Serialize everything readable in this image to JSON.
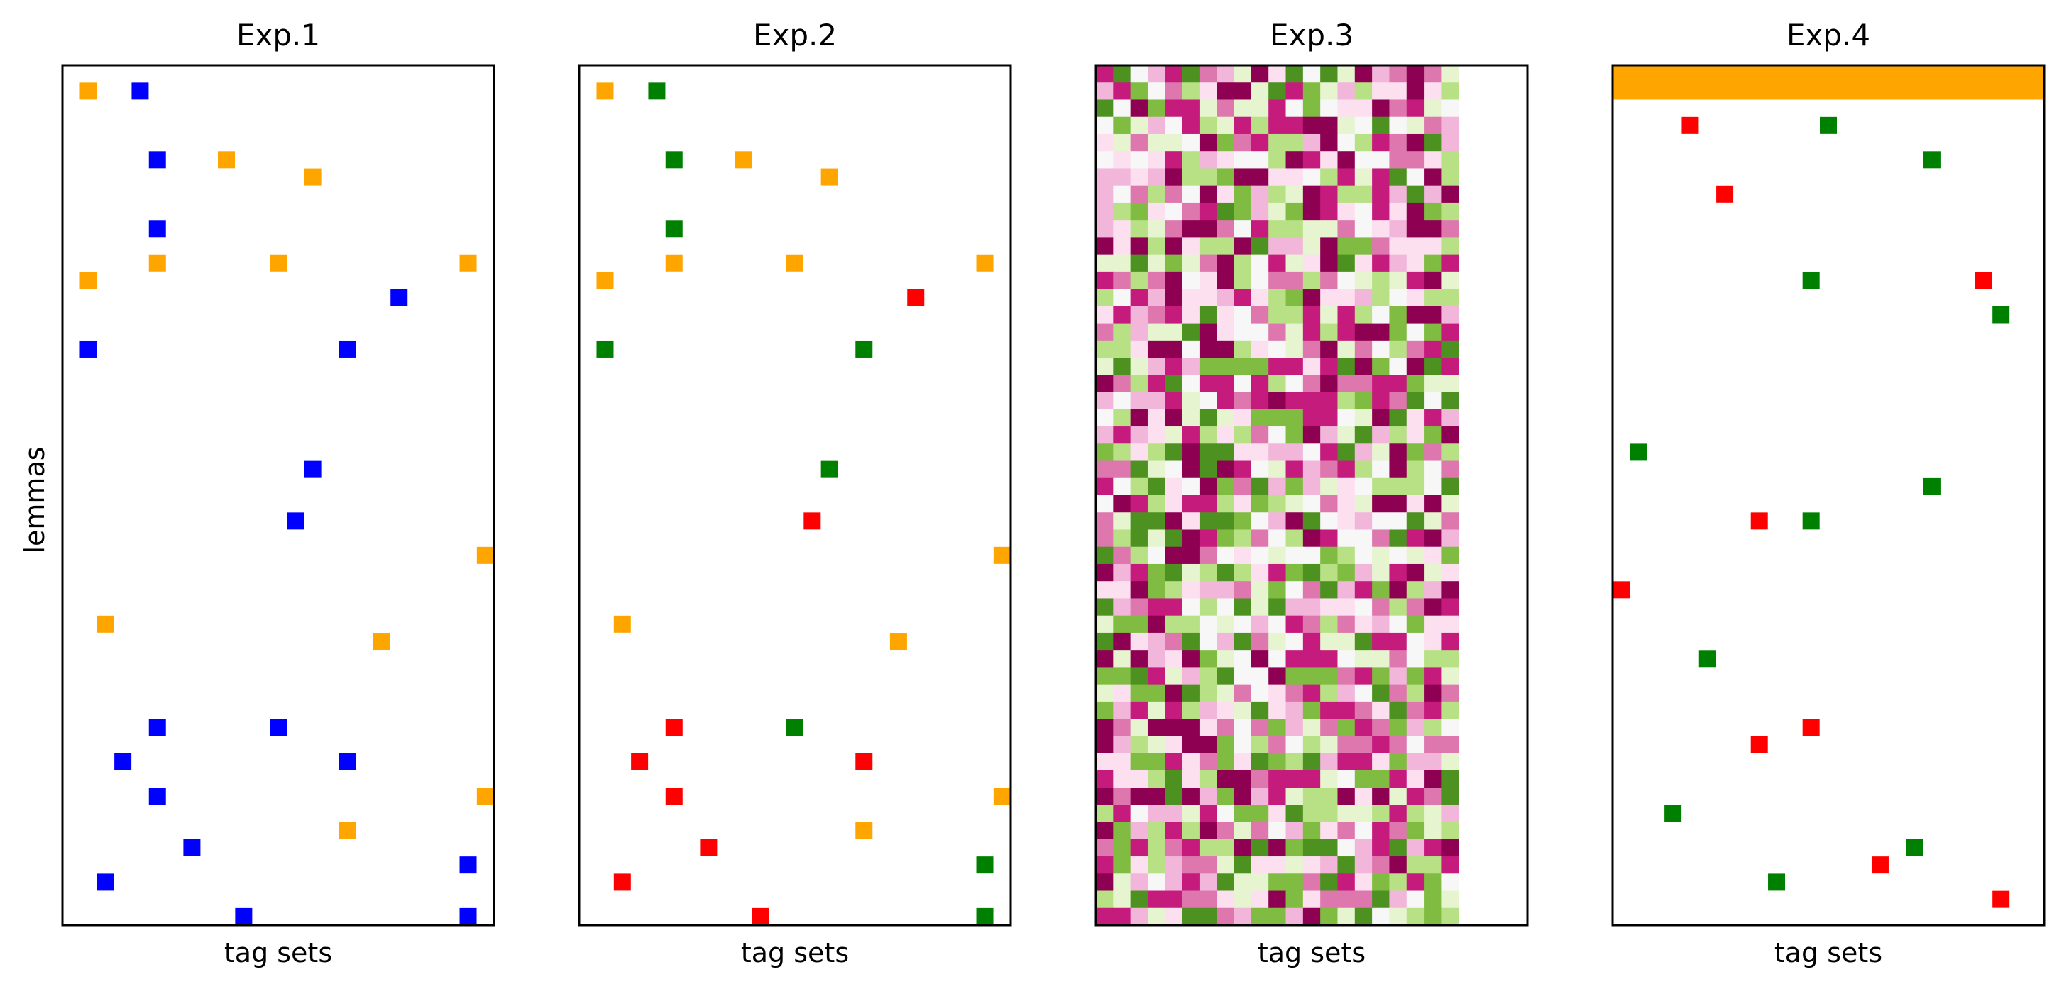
{
  "figure": {
    "ylabel": "lemmas"
  },
  "colors": {
    "orange": "#ffa500",
    "blue": "#0000ff",
    "green": "#008000",
    "red": "#ff0000",
    "piyg": [
      "#8e0152",
      "#c51b7d",
      "#de77ae",
      "#f1b6da",
      "#fde0ef",
      "#f7f7f7",
      "#e6f5d0",
      "#b8e186",
      "#7fbc41",
      "#4d9221",
      "#276419"
    ]
  },
  "chart_data": [
    {
      "type": "scatter",
      "title": "Exp.1",
      "xlabel": "tag sets",
      "ylabel": "lemmas",
      "grid": false,
      "xlim": [
        0,
        25
      ],
      "ylim": [
        0,
        50
      ],
      "cells": [
        {
          "x": 1,
          "y": 1,
          "color": "orange"
        },
        {
          "x": 4,
          "y": 1,
          "color": "blue"
        },
        {
          "x": 5,
          "y": 5,
          "color": "blue"
        },
        {
          "x": 9,
          "y": 5,
          "color": "orange"
        },
        {
          "x": 14,
          "y": 6,
          "color": "orange"
        },
        {
          "x": 5,
          "y": 9,
          "color": "blue"
        },
        {
          "x": 5,
          "y": 11,
          "color": "orange"
        },
        {
          "x": 12,
          "y": 11,
          "color": "orange"
        },
        {
          "x": 23,
          "y": 11,
          "color": "orange"
        },
        {
          "x": 1,
          "y": 12,
          "color": "orange"
        },
        {
          "x": 19,
          "y": 13,
          "color": "blue"
        },
        {
          "x": 1,
          "y": 16,
          "color": "blue"
        },
        {
          "x": 16,
          "y": 16,
          "color": "blue"
        },
        {
          "x": 14,
          "y": 23,
          "color": "blue"
        },
        {
          "x": 13,
          "y": 26,
          "color": "blue"
        },
        {
          "x": 24,
          "y": 28,
          "color": "orange"
        },
        {
          "x": 2,
          "y": 32,
          "color": "orange"
        },
        {
          "x": 18,
          "y": 33,
          "color": "orange"
        },
        {
          "x": 5,
          "y": 38,
          "color": "blue"
        },
        {
          "x": 12,
          "y": 38,
          "color": "blue"
        },
        {
          "x": 3,
          "y": 40,
          "color": "blue"
        },
        {
          "x": 16,
          "y": 40,
          "color": "blue"
        },
        {
          "x": 5,
          "y": 42,
          "color": "blue"
        },
        {
          "x": 24,
          "y": 42,
          "color": "orange"
        },
        {
          "x": 16,
          "y": 44,
          "color": "orange"
        },
        {
          "x": 7,
          "y": 45,
          "color": "blue"
        },
        {
          "x": 23,
          "y": 46,
          "color": "blue"
        },
        {
          "x": 2,
          "y": 47,
          "color": "blue"
        },
        {
          "x": 10,
          "y": 49,
          "color": "blue"
        },
        {
          "x": 23,
          "y": 49,
          "color": "blue"
        }
      ]
    },
    {
      "type": "scatter",
      "title": "Exp.2",
      "xlabel": "tag sets",
      "grid": false,
      "xlim": [
        0,
        25
      ],
      "ylim": [
        0,
        50
      ],
      "cells": [
        {
          "x": 1,
          "y": 1,
          "color": "orange"
        },
        {
          "x": 4,
          "y": 1,
          "color": "green"
        },
        {
          "x": 5,
          "y": 5,
          "color": "green"
        },
        {
          "x": 9,
          "y": 5,
          "color": "orange"
        },
        {
          "x": 14,
          "y": 6,
          "color": "orange"
        },
        {
          "x": 5,
          "y": 9,
          "color": "green"
        },
        {
          "x": 5,
          "y": 11,
          "color": "orange"
        },
        {
          "x": 12,
          "y": 11,
          "color": "orange"
        },
        {
          "x": 23,
          "y": 11,
          "color": "orange"
        },
        {
          "x": 1,
          "y": 12,
          "color": "orange"
        },
        {
          "x": 19,
          "y": 13,
          "color": "red"
        },
        {
          "x": 1,
          "y": 16,
          "color": "green"
        },
        {
          "x": 16,
          "y": 16,
          "color": "green"
        },
        {
          "x": 14,
          "y": 23,
          "color": "green"
        },
        {
          "x": 13,
          "y": 26,
          "color": "red"
        },
        {
          "x": 24,
          "y": 28,
          "color": "orange"
        },
        {
          "x": 2,
          "y": 32,
          "color": "orange"
        },
        {
          "x": 18,
          "y": 33,
          "color": "orange"
        },
        {
          "x": 5,
          "y": 38,
          "color": "red"
        },
        {
          "x": 12,
          "y": 38,
          "color": "green"
        },
        {
          "x": 3,
          "y": 40,
          "color": "red"
        },
        {
          "x": 16,
          "y": 40,
          "color": "red"
        },
        {
          "x": 5,
          "y": 42,
          "color": "red"
        },
        {
          "x": 24,
          "y": 42,
          "color": "orange"
        },
        {
          "x": 16,
          "y": 44,
          "color": "orange"
        },
        {
          "x": 7,
          "y": 45,
          "color": "red"
        },
        {
          "x": 23,
          "y": 46,
          "color": "green"
        },
        {
          "x": 2,
          "y": 47,
          "color": "red"
        },
        {
          "x": 10,
          "y": 49,
          "color": "red"
        },
        {
          "x": 23,
          "y": 49,
          "color": "green"
        }
      ]
    },
    {
      "type": "heatmap",
      "title": "Exp.3",
      "xlabel": "tag sets",
      "grid": false,
      "xlim": [
        0,
        25
      ],
      "ylim": [
        0,
        50
      ],
      "colormap": "piyg",
      "rows": [
        "bjfdbjcdgaejfjgadcacg",
        "dbifcheaagjbigdheeaeh",
        "jfaibbgcggbfifeeacbgf",
        "figdfbhgbhbbaagfjfgcd",
        "egcggfaicbhhdafhbcajd",
        "fefebhdeffhabeaffcceh",
        "ddedahhiaaeefhbgbjfah",
        "dfchcfaeidhgabhhbdjda",
        "dhiefcbjidgiabefbeaih",
        "dehgcaacfbhhggcfedaac",
        "aeahaehhajddgaiiceeeh",
        "ggjgigcahfbgeajebdeib",
        "bchcafeahfcchcfghgbag",
        "hfbdaeedbehiaeedhfehh",
        "ebdcbejefchhbgbhfiaad",
        "chdggjaeffcgbhbaaifib",
        "hheaafaahefgcagcfhcbj",
        "gjgdbdiiiibbebjaifajb",
        "achbjfbbfbhfcaccbbigg",
        "dfddbgfbcbabbbhibcjfj",
        "fhaeagjgeiiibbfgajebd",
        "dbdegbhehcfiadgjdheia",
        "ihehjajjeeddfbjdgaich",
        "ccjgfajabfgbdcbhfahfc",
        "bfhjefaicjdidgefhhhfj",
        "fabhebbheihgfcegaaeag",
        "cgjjaejjifdajfedffjgc",
        "chjgjabihcfhabffcjbad",
        "jchfaacfefgffihfgfgei",
        "adbijghjhebijhidgbage",
        "eeaiheddcgifcjdbiahda",
        "jdcbbfhfjgjddeefchcab",
        "giiahhfgfdfbchcedfiee",
        "jaedcjfdjcgfbggjbbfeb",
        "agadeaigfafbbbfggcfhh",
        "iijbgdhjffaiiicbidibg",
        "geiiajhgcfecbhdfjchac",
        "idbgbhdegjedibbcejcbh",
        "acgaaaecfcidgcibcidhf",
        "adhgeaaifhcfhgccbcfcc",
        "eeiibeciejihjdbbeiddg",
        "beehjehaacbbbgfiibeaj",
        "acaajadiadbghhaeagbcj",
        "hbfddgbfiiejhhgghbhgd",
        "aidhbhacgcfdiecfbcigh",
        "cibhcbhhajaijjfdbjdba",
        "biehdccgjeegedjdcahhb",
        "agdfdbdjggiicjbeihbif",
        "hgjbbccegeaiecccjdfig",
        "bbdgejjcdiidaigjfghih"
      ]
    },
    {
      "type": "scatter",
      "title": "Exp.4",
      "xlabel": "tag sets",
      "grid": false,
      "xlim": [
        0,
        25
      ],
      "ylim": [
        0,
        50
      ],
      "rows_band": {
        "from": 0,
        "to": 2,
        "color": "orange"
      },
      "cells": [
        {
          "x": 4,
          "y": 3,
          "color": "red"
        },
        {
          "x": 12,
          "y": 3,
          "color": "green"
        },
        {
          "x": 18,
          "y": 5,
          "color": "green"
        },
        {
          "x": 6,
          "y": 7,
          "color": "red"
        },
        {
          "x": 11,
          "y": 12,
          "color": "green"
        },
        {
          "x": 21,
          "y": 12,
          "color": "red"
        },
        {
          "x": 22,
          "y": 14,
          "color": "green"
        },
        {
          "x": 1,
          "y": 22,
          "color": "green"
        },
        {
          "x": 18,
          "y": 24,
          "color": "green"
        },
        {
          "x": 8,
          "y": 26,
          "color": "red"
        },
        {
          "x": 11,
          "y": 26,
          "color": "green"
        },
        {
          "x": 0,
          "y": 30,
          "color": "red"
        },
        {
          "x": 5,
          "y": 34,
          "color": "green"
        },
        {
          "x": 11,
          "y": 38,
          "color": "red"
        },
        {
          "x": 8,
          "y": 39,
          "color": "red"
        },
        {
          "x": 3,
          "y": 43,
          "color": "green"
        },
        {
          "x": 17,
          "y": 45,
          "color": "green"
        },
        {
          "x": 15,
          "y": 46,
          "color": "red"
        },
        {
          "x": 9,
          "y": 47,
          "color": "green"
        },
        {
          "x": 22,
          "y": 48,
          "color": "red"
        }
      ]
    }
  ]
}
